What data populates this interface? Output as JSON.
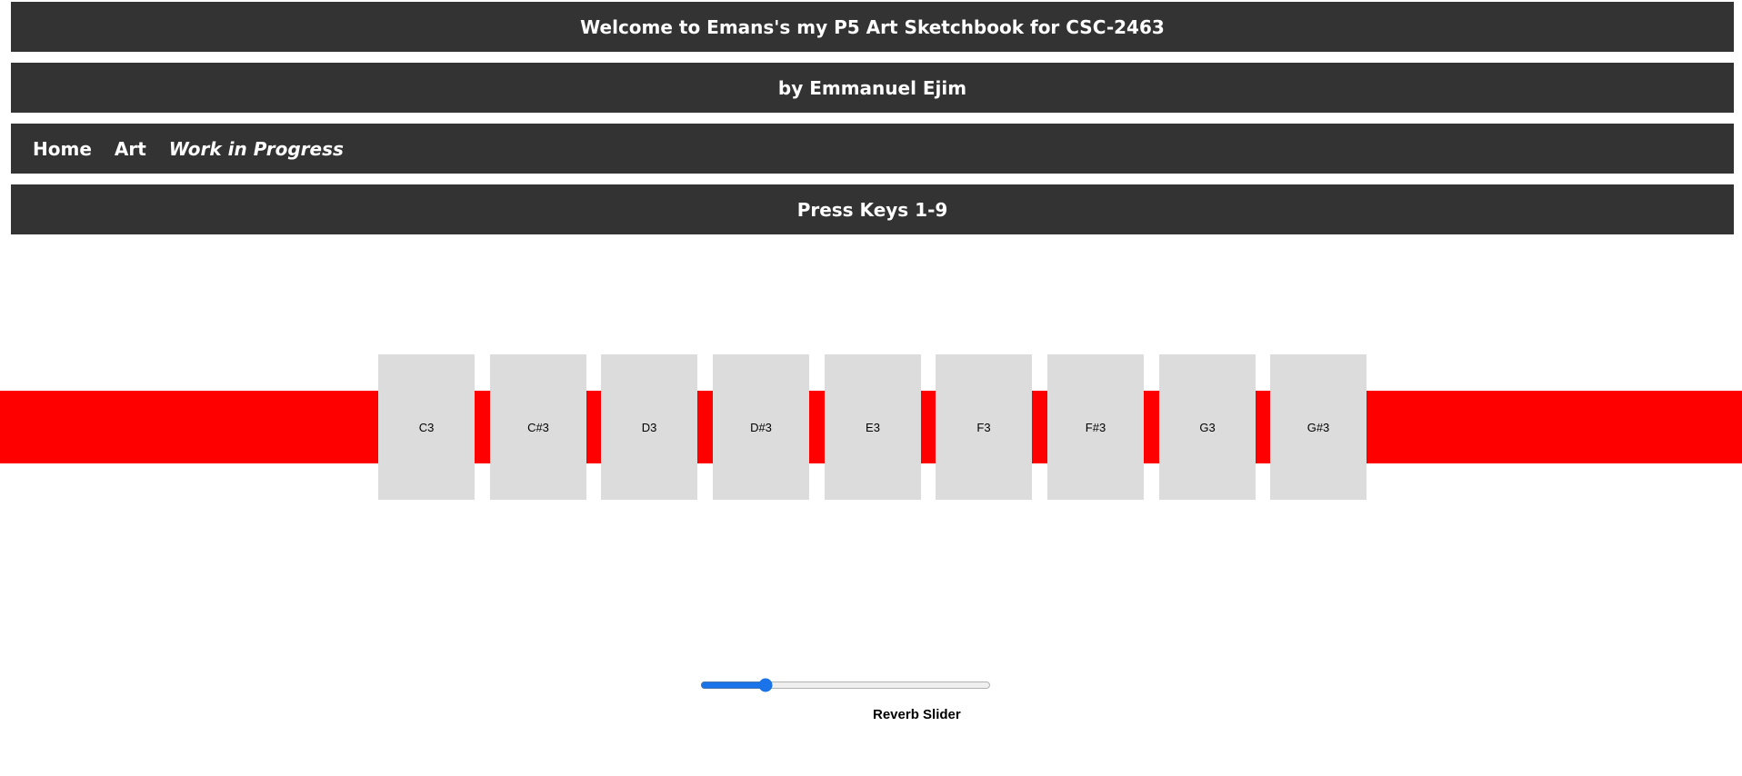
{
  "header": {
    "title": "Welcome to Emans's my P5 Art Sketchbook for CSC-2463",
    "author": "by Emmanuel Ejim"
  },
  "nav": {
    "items": [
      {
        "label": "Home"
      },
      {
        "label": "Art"
      },
      {
        "label": "Work in Progress"
      }
    ]
  },
  "instructions": "Press Keys 1-9",
  "colors": {
    "bar_background": "#333333",
    "band": "#ff0000",
    "key_background": "#dcdcdc",
    "slider_accent": "#1a73e8"
  },
  "keys": [
    {
      "label": "C3"
    },
    {
      "label": "C#3"
    },
    {
      "label": "D3"
    },
    {
      "label": "D#3"
    },
    {
      "label": "E3"
    },
    {
      "label": "F3"
    },
    {
      "label": "F#3"
    },
    {
      "label": "G3"
    },
    {
      "label": "G#3"
    }
  ],
  "reverb": {
    "label": "Reverb Slider",
    "value": 0.21
  }
}
